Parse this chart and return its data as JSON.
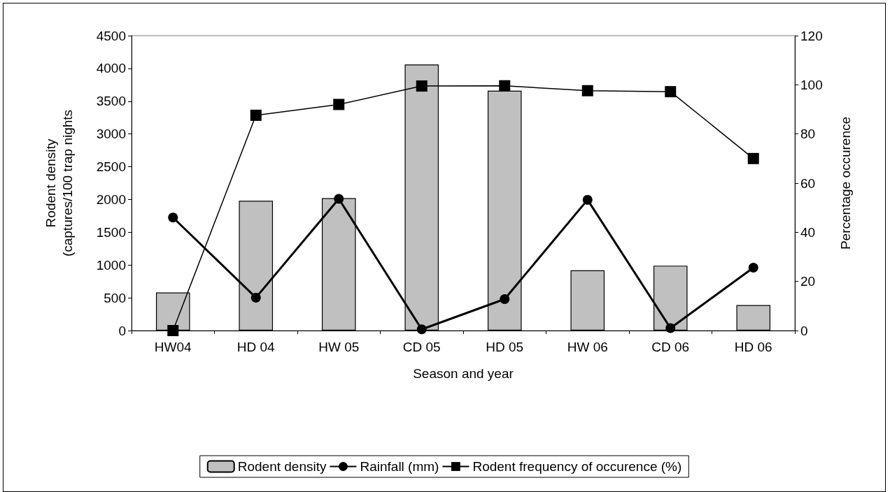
{
  "chart_data": {
    "type": "bar",
    "xlabel": "Season and year",
    "ylabel": "Rodent density\n(captures/100 trap nights",
    "y2label": "Percentage occurence",
    "categories": [
      "HW04",
      "HD 04",
      "HW 05",
      "CD 05",
      "HD 05",
      "HW 06",
      "CD 06",
      "HD 06"
    ],
    "series": [
      {
        "name": "Rodent density",
        "color": "#c0c0c0",
        "values": [
          580,
          1980,
          2020,
          4060,
          3660,
          920,
          990,
          390
        ]
      },
      {
        "name": "Rainfall (mm)",
        "type": "line",
        "axis": "y2",
        "color": "#000000",
        "marker": "circle",
        "values": [
          46,
          13.4,
          53.6,
          0.5,
          12.8,
          53.2,
          1,
          25.6
        ]
      },
      {
        "name": "Rodent frequency of occurence (%)",
        "type": "line",
        "axis": "y2",
        "color": "#000000",
        "marker": "square",
        "values": [
          0,
          87.6,
          92,
          99.5,
          99.6,
          97.6,
          97.2,
          70
        ]
      }
    ],
    "ylim": [
      0,
      4500
    ],
    "yticks": [
      0,
      500,
      1000,
      1500,
      2000,
      2500,
      3000,
      3500,
      4000,
      4500
    ],
    "y2lim": [
      0,
      120
    ],
    "y2ticks": [
      0,
      20,
      40,
      60,
      80,
      100,
      120
    ],
    "grid": false,
    "legend": "bottom"
  }
}
